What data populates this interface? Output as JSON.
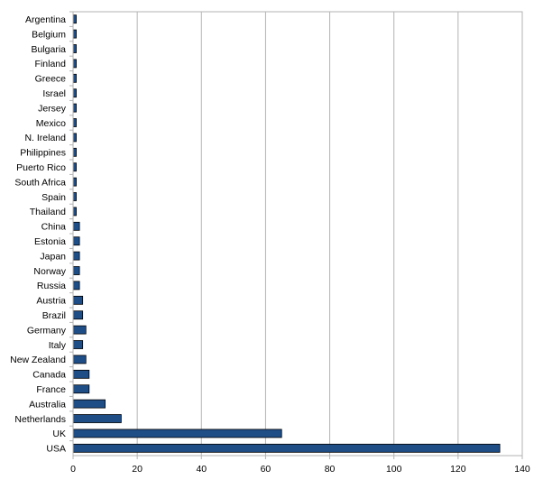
{
  "chart_data": {
    "type": "bar",
    "orientation": "horizontal",
    "title": "",
    "xlabel": "",
    "ylabel": "",
    "xlim": [
      0,
      140
    ],
    "x_ticks": [
      0,
      20,
      40,
      60,
      80,
      100,
      120,
      140
    ],
    "grid": "vertical",
    "legend": "none",
    "bar_color": "#1f4e87",
    "bar_edge_color": "#000000",
    "categories": [
      "Argentina",
      "Belgium",
      "Bulgaria",
      "Finland",
      "Greece",
      "Israel",
      "Jersey",
      "Mexico",
      "N. Ireland",
      "Philippines",
      "Puerto Rico",
      "South Africa",
      "Spain",
      "Thailand",
      "China",
      "Estonia",
      "Japan",
      "Norway",
      "Russia",
      "Austria",
      "Brazil",
      "Germany",
      "Italy",
      "New Zealand",
      "Canada",
      "France",
      "Australia",
      "Netherlands",
      "UK",
      "USA"
    ],
    "values": [
      1,
      1,
      1,
      1,
      1,
      1,
      1,
      1,
      1,
      1,
      1,
      1,
      1,
      1,
      2,
      2,
      2,
      2,
      2,
      3,
      3,
      4,
      3,
      4,
      5,
      5,
      10,
      15,
      65,
      133
    ]
  }
}
